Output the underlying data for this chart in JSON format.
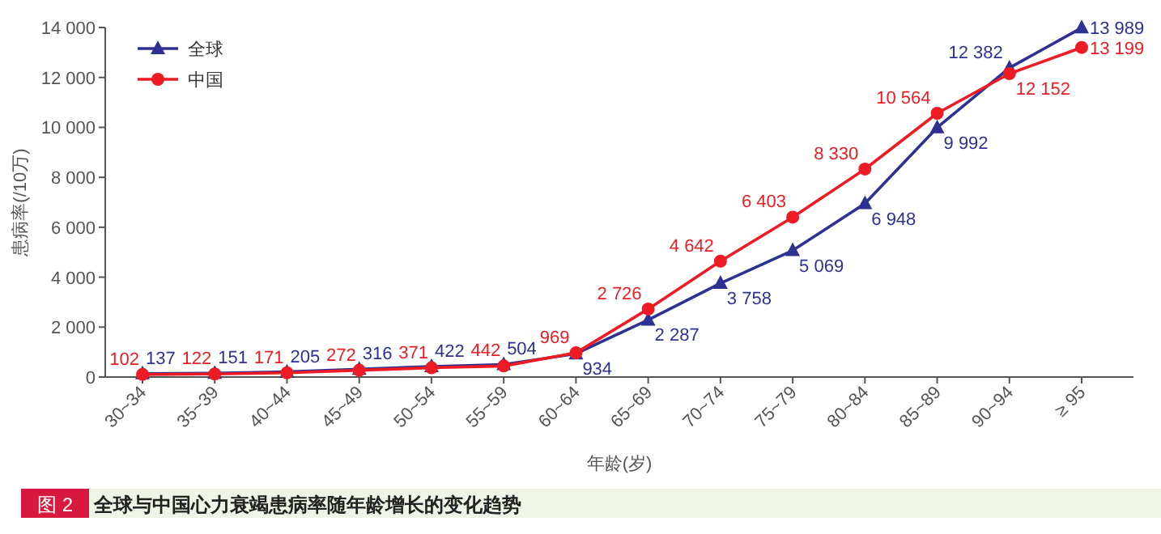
{
  "chart_data": {
    "type": "line",
    "title": "全球与中国心力衰竭患病率随年龄增长的变化趋势",
    "xlabel": "年龄(岁)",
    "ylabel": "患病率(/10万)",
    "annotations": [
      "图 2"
    ],
    "categories": [
      "30~34",
      "35~39",
      "40~44",
      "45~49",
      "50~54",
      "55~59",
      "60~64",
      "65~69",
      "70~74",
      "75~79",
      "80~84",
      "85~89",
      "90~94",
      "≥ 95"
    ],
    "series": [
      {
        "name": "全球",
        "color": "#2e3192",
        "marker": "triangle",
        "values": [
          137,
          151,
          205,
          316,
          422,
          504,
          934,
          2287,
          3758,
          5069,
          6948,
          9992,
          12382,
          13989
        ],
        "value_labels": [
          "137",
          "151",
          "205",
          "316",
          "422",
          "504",
          "934",
          "2 287",
          "3 758",
          "5 069",
          "6 948",
          "9 992",
          "12 382",
          "13 989"
        ]
      },
      {
        "name": "中国",
        "color": "#ed1c24",
        "marker": "circle",
        "values": [
          102,
          122,
          171,
          272,
          371,
          442,
          969,
          2726,
          4642,
          6403,
          8330,
          10564,
          12152,
          13199
        ],
        "value_labels": [
          "102",
          "122",
          "171",
          "272",
          "371",
          "442",
          "969",
          "2 726",
          "4 642",
          "6 403",
          "8 330",
          "10 564",
          "12 152",
          "13 199"
        ]
      }
    ],
    "ylim": [
      0,
      14000
    ],
    "yticks": [
      0,
      {
        "value": 2000,
        "label": "2 000"
      },
      {
        "value": 4000,
        "label": "4 000"
      },
      {
        "value": 6000,
        "label": "6 000"
      },
      {
        "value": 8000,
        "label": "8 000"
      },
      {
        "value": 10000,
        "label": "10 000"
      },
      {
        "value": 12000,
        "label": "12 000"
      },
      {
        "value": 14000,
        "label": "14 000"
      }
    ],
    "grid": false,
    "legend": "top left",
    "line_style": "solid"
  }
}
